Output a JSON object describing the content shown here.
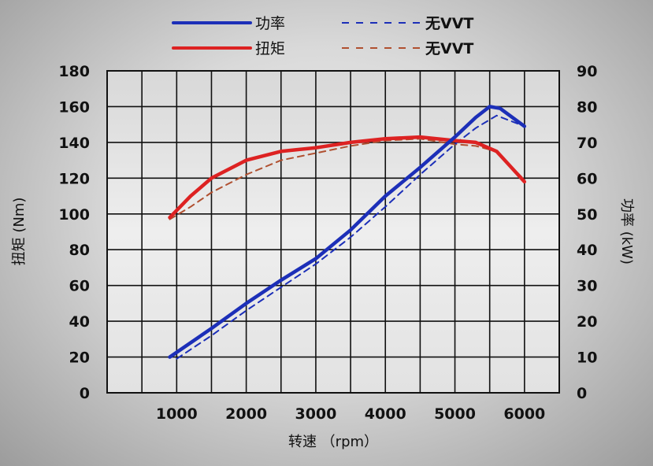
{
  "chart_data": {
    "type": "line",
    "xlabel": "转速 （rpm）",
    "ylabel_left": "扭矩 (Nm)",
    "ylabel_right": "功率 (kW)",
    "xlim": [
      0,
      6500
    ],
    "ylim_left": [
      0,
      180
    ],
    "ylim_right": [
      0,
      90
    ],
    "x_ticks": [
      "1000",
      "2000",
      "3000",
      "4000",
      "5000",
      "6000"
    ],
    "y_ticks_left": [
      "0",
      "20",
      "40",
      "60",
      "80",
      "100",
      "120",
      "140",
      "160",
      "180"
    ],
    "y_ticks_right": [
      "0",
      "10",
      "20",
      "30",
      "40",
      "50",
      "60",
      "70",
      "80",
      "90"
    ],
    "grid": true,
    "legend_position": "top",
    "legend": [
      {
        "label": "功率",
        "color": "#1c2fb8",
        "style": "solid"
      },
      {
        "label": "无VVT",
        "color": "#1c2fb8",
        "style": "dashed"
      },
      {
        "label": "扭矩",
        "color": "#dd2222",
        "style": "solid"
      },
      {
        "label": "无VVT",
        "color": "#b05030",
        "style": "dashed"
      }
    ],
    "series": [
      {
        "name": "功率",
        "axis": "right",
        "color": "#1c2fb8",
        "style": "solid",
        "x": [
          900,
          1500,
          2000,
          2500,
          3000,
          3500,
          4000,
          4500,
          5000,
          5300,
          5500,
          5650,
          6000
        ],
        "y": [
          10,
          18,
          25,
          31.5,
          37.5,
          45.5,
          55,
          63,
          71.5,
          77,
          80,
          79.5,
          74.5
        ]
      },
      {
        "name": "无VVT",
        "axis": "right",
        "color": "#1c2fb8",
        "style": "dashed",
        "x": [
          1000,
          1500,
          2000,
          2500,
          3000,
          3500,
          4000,
          4500,
          5000,
          5300,
          5600,
          6000
        ],
        "y": [
          9.5,
          16,
          23,
          29.5,
          36,
          43.5,
          52,
          61,
          69.5,
          74,
          77.5,
          74.5
        ]
      },
      {
        "name": "扭矩",
        "axis": "left",
        "color": "#dd2222",
        "style": "solid",
        "x": [
          900,
          1200,
          1500,
          2000,
          2500,
          3000,
          3500,
          4000,
          4500,
          5000,
          5300,
          5600,
          6000
        ],
        "y": [
          98,
          110,
          120,
          130,
          135,
          137,
          140,
          142,
          143,
          141,
          140,
          135,
          118
        ]
      },
      {
        "name": "无VVT",
        "axis": "left",
        "color": "#b05030",
        "style": "dashed",
        "x": [
          900,
          1200,
          1500,
          2000,
          2500,
          3000,
          3500,
          4000,
          4500,
          5000,
          5300,
          5600,
          6000
        ],
        "y": [
          97,
          104,
          112,
          122,
          130,
          134,
          138,
          141,
          142,
          139,
          138,
          135,
          119
        ]
      }
    ]
  }
}
